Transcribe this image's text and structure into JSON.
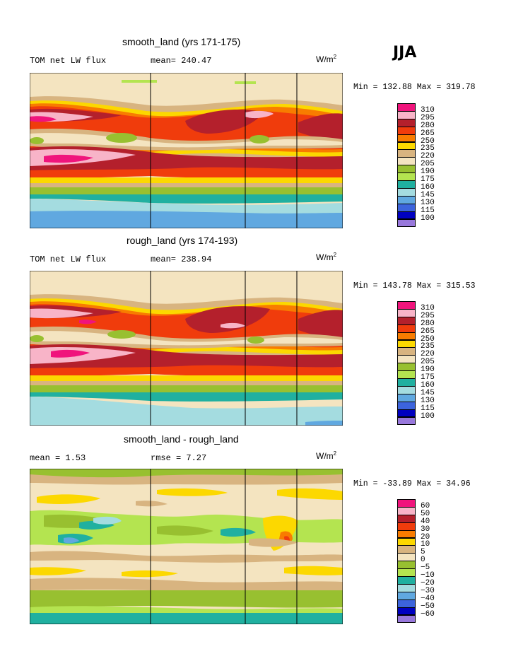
{
  "season": "JJA",
  "chart_data": [
    {
      "type": "heatmap",
      "title": "smooth_land (yrs 171-175)",
      "subtitle_left": "TOM net LW flux",
      "mean_text": "mean= 240.47",
      "units": "W/m",
      "units_exp": "2",
      "minmax": "Min = 132.88 Max = 319.78",
      "variable": "TOM net LW flux",
      "mean": 240.47,
      "min": 132.88,
      "max": 319.78,
      "levels": [
        "310",
        "295",
        "280",
        "265",
        "250",
        "235",
        "220",
        "205",
        "190",
        "175",
        "160",
        "145",
        "130",
        "115",
        "100"
      ],
      "colors": [
        "#f0147c",
        "#f8b4c8",
        "#b4202c",
        "#f03c0c",
        "#f87c00",
        "#fcd800",
        "#d8b480",
        "#f4e4c0",
        "#98c030",
        "#b4e450",
        "#20b0a0",
        "#a4dce0",
        "#60a8e0",
        "#3c64dc",
        "#0000c0",
        "#9878dc"
      ]
    },
    {
      "type": "heatmap",
      "title": "rough_land (yrs 174-193)",
      "subtitle_left": "TOM net LW flux",
      "mean_text": "mean= 238.94",
      "units": "W/m",
      "units_exp": "2",
      "minmax": "Min = 143.78 Max = 315.53",
      "variable": "TOM net LW flux",
      "mean": 238.94,
      "min": 143.78,
      "max": 315.53,
      "levels": [
        "310",
        "295",
        "280",
        "265",
        "250",
        "235",
        "220",
        "205",
        "190",
        "175",
        "160",
        "145",
        "130",
        "115",
        "100"
      ],
      "colors": [
        "#f0147c",
        "#f8b4c8",
        "#b4202c",
        "#f03c0c",
        "#f87c00",
        "#fcd800",
        "#d8b480",
        "#f4e4c0",
        "#98c030",
        "#b4e450",
        "#20b0a0",
        "#a4dce0",
        "#60a8e0",
        "#3c64dc",
        "#0000c0",
        "#9878dc"
      ]
    },
    {
      "type": "heatmap",
      "title": "smooth_land - rough_land",
      "subtitle_left": "mean =    1.53",
      "rmse_text": "rmse =    7.27",
      "units": "W/m",
      "units_exp": "2",
      "minmax": "Min = -33.89 Max =  34.96",
      "mean": 1.53,
      "rmse": 7.27,
      "min": -33.89,
      "max": 34.96,
      "levels": [
        "60",
        "50",
        "40",
        "30",
        "20",
        "10",
        "5",
        "0",
        "−5",
        "−10",
        "−20",
        "−30",
        "−40",
        "−50",
        "−60"
      ],
      "colors": [
        "#f0147c",
        "#f8b4c8",
        "#b4202c",
        "#f03c0c",
        "#f87c00",
        "#fcd800",
        "#d8b480",
        "#f4e4c0",
        "#98c030",
        "#b4e450",
        "#20b0a0",
        "#a4dce0",
        "#60a8e0",
        "#3c64dc",
        "#0000c0",
        "#9878dc"
      ]
    }
  ]
}
